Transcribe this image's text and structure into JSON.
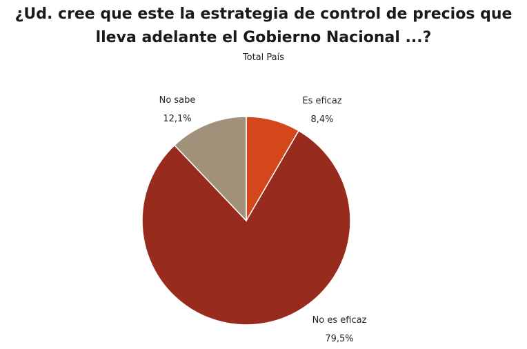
{
  "chart_data": {
    "type": "pie",
    "title_lines": [
      "¿Ud. cree que este la estrategia de control de precios que",
      "lleva adelante el Gobierno Nacional ...?"
    ],
    "subtitle": "Total País",
    "slices": [
      {
        "label": "Es eficaz",
        "value": 8.4,
        "value_label": "8,4%",
        "color": "#d4471a"
      },
      {
        "label": "No es eficaz",
        "value": 79.5,
        "value_label": "79,5%",
        "color": "#972b1e"
      },
      {
        "label": "No sabe",
        "value": 12.1,
        "value_label": "12,1%",
        "color": "#a1917a"
      }
    ],
    "start_angle": "12 o'clock",
    "direction": "clockwise",
    "legend": "none"
  }
}
